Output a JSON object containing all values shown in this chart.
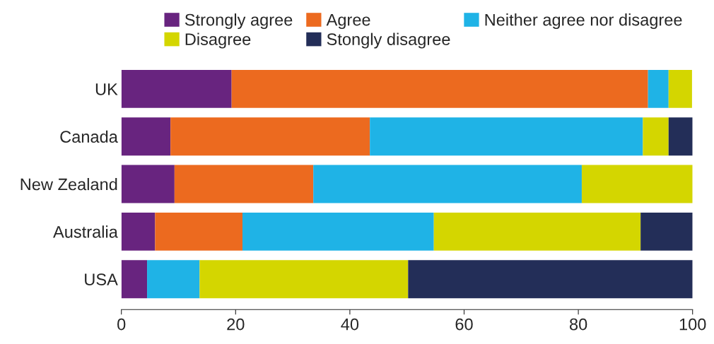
{
  "chart_data": {
    "type": "bar",
    "orientation": "horizontal",
    "stacked": true,
    "categories": [
      "UK",
      "Canada",
      "New Zealand",
      "Australia",
      "USA"
    ],
    "series": [
      {
        "name": "Strongly agree",
        "color": "#68247f",
        "values": [
          19.3,
          8.6,
          9.3,
          5.9,
          4.5
        ]
      },
      {
        "name": "Agree",
        "color": "#ec6a1f",
        "values": [
          72.9,
          34.9,
          24.3,
          15.3,
          null
        ]
      },
      {
        "name": "Neither agree nor disagree",
        "color": "#1fb3e6",
        "values": [
          3.6,
          47.8,
          47.0,
          33.5,
          9.2
        ]
      },
      {
        "name": "Disagree",
        "color": "#d4d600",
        "values": [
          4.1,
          4.5,
          19.4,
          36.2,
          36.5
        ]
      },
      {
        "name": "Stongly disagree",
        "color": "#232e58",
        "values": [
          null,
          4.2,
          null,
          9.1,
          49.8
        ]
      }
    ],
    "xlim": [
      0,
      100
    ],
    "xticks": [
      0,
      20,
      40,
      60,
      80,
      100
    ],
    "grid": false,
    "legend": "top right"
  }
}
